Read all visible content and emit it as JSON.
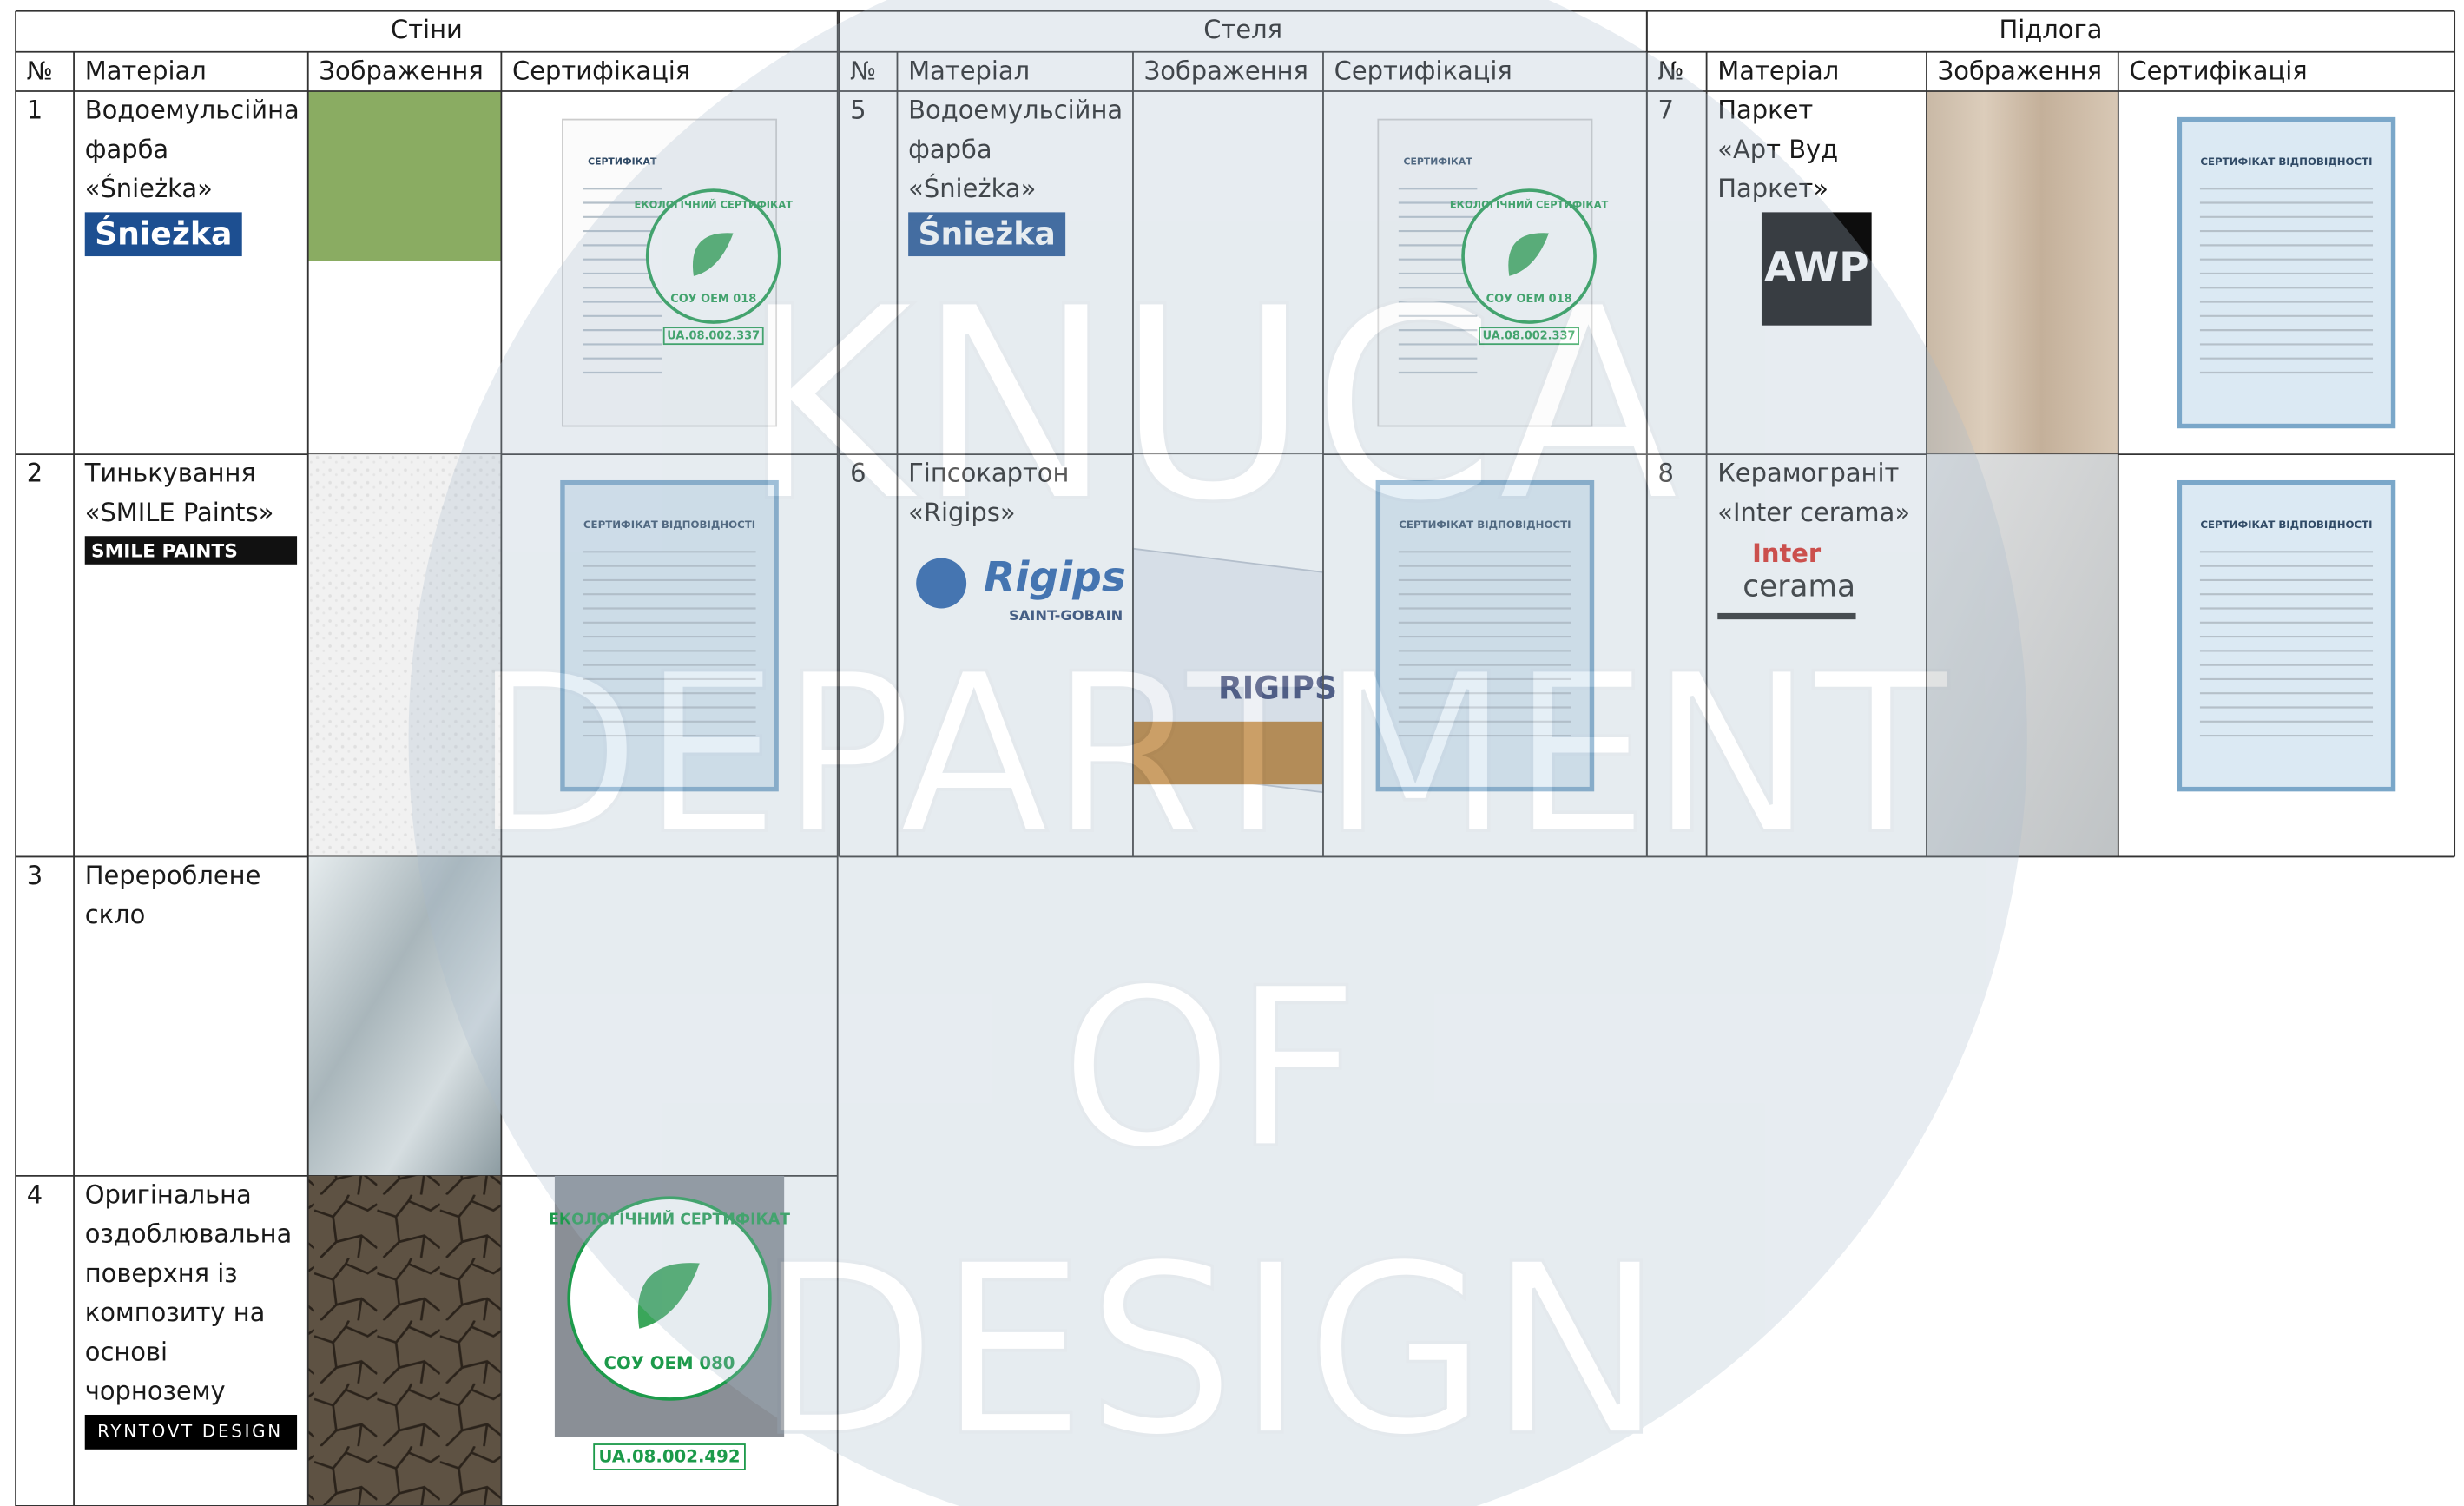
{
  "watermark": [
    "KNUCA",
    "DEPARTMENT",
    "OF",
    "DESIGN"
  ],
  "table": {
    "column_headers": [
      "№",
      "Матеріал",
      "Зображення",
      "Сертифікація"
    ],
    "sections": [
      {
        "title": "Стіни",
        "rows": [
          {
            "number": "1",
            "material": [
              "Водоемульсійна",
              "фарба",
              "«Śnieżka»"
            ],
            "logo": [
              "Śnieżka"
            ],
            "certificate": {
              "title": "СЕРТИФІКАТ",
              "seal": "ЕКОЛОГІЧНИЙ СЕРТИФІКАТ",
              "standard": "СОУ ОЕМ 018",
              "code": "UA.08.002.337"
            }
          },
          {
            "number": "2",
            "material": [
              "Тинькування",
              "«SMILE Paints»"
            ],
            "logo": [
              "SMILE PAINTS"
            ],
            "certificate": {
              "title": "СЕРТИФІКАТ ВІДПОВІДНОСТІ"
            }
          },
          {
            "number": "3",
            "material": [
              "Перероблене",
              "скло"
            ]
          },
          {
            "number": "4",
            "material": [
              "Оригінальна",
              "оздоблювальна",
              "поверхня із",
              "композиту на",
              "основі",
              "чорнозему"
            ],
            "logo": [
              "RYNTOVT DESIGN"
            ],
            "certificate": {
              "seal": "ЕКОЛОГІЧНИЙ СЕРТИФІКАТ",
              "standard": "СОУ ОЕМ 080",
              "code": "UA.08.002.492"
            }
          }
        ]
      },
      {
        "title": "Стеля",
        "rows": [
          {
            "number": "5",
            "material": [
              "Водоемульсійна",
              "фарба",
              "«Śnieżka»"
            ],
            "logo": [
              "Śnieżka"
            ],
            "certificate": {
              "title": "СЕРТИФІКАТ",
              "seal": "ЕКОЛОГІЧНИЙ СЕРТИФІКАТ",
              "standard": "СОУ ОЕМ 018",
              "code": "UA.08.002.337"
            }
          },
          {
            "number": "6",
            "material": [
              "Гіпсокартон",
              "«Rigips»"
            ],
            "logo": [
              "Rigips",
              "SAINT-GOBAIN"
            ],
            "image_text": "RIGIPS",
            "certificate": {
              "title": "СЕРТИФІКАТ ВІДПОВІДНОСТІ"
            }
          }
        ]
      },
      {
        "title": "Підлога",
        "rows": [
          {
            "number": "7",
            "material": [
              "Паркет",
              "«Арт Вуд",
              "Паркет»"
            ],
            "logo": [
              "AWP"
            ],
            "certificate": {
              "title": "СЕРТИФІКАТ ВІДПОВІДНОСТІ"
            }
          },
          {
            "number": "8",
            "material": [
              "Керамограніт",
              "«Inter cerama»"
            ],
            "logo": [
              "Inter",
              "cerama"
            ],
            "certificate": {
              "title": "СЕРТИФІКАТ ВІДПОВІДНОСТІ"
            }
          }
        ]
      }
    ]
  }
}
